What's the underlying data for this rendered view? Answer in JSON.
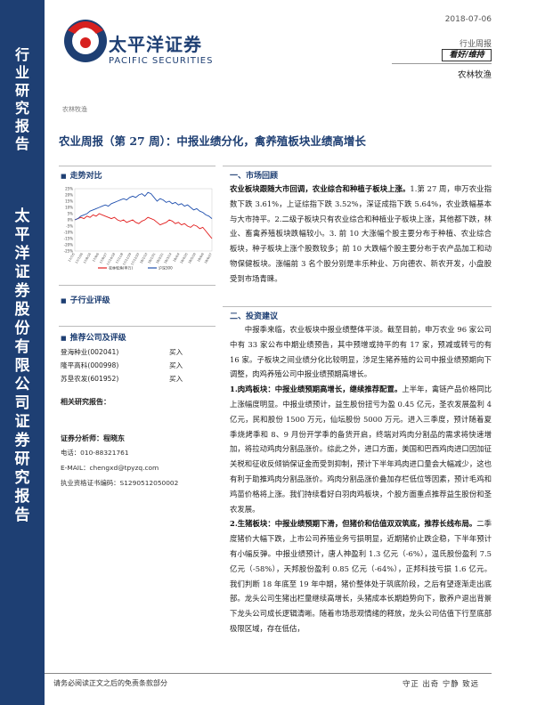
{
  "sidebar": {
    "top_label": "行业研究报告",
    "bottom_label": "太平洋证券股份有限公司证券研究报告"
  },
  "header": {
    "logo_cn": "太平洋证券",
    "logo_en": "PACIFIC SECURITIES",
    "date": "2018-07-06",
    "report_type": "行业周报",
    "rating": "看好/维持",
    "sector": "农林牧渔",
    "sector_small": "农林牧渔"
  },
  "title": "农业周报（第 27 周）：中报业绩分化，禽养殖板块业绩高增长",
  "sections": {
    "trend": "走势对比",
    "sub_rating": "子行业评级",
    "recommend": "推荐公司及评级",
    "related": "相关研究报告：",
    "market_review": "一、市场回顾",
    "investment": "二、投资建议"
  },
  "chart_data": {
    "type": "line",
    "y_ticks": [
      "25%",
      "20%",
      "15%",
      "10%",
      "5%",
      "0%",
      "-5%",
      "-10%",
      "-15%",
      "-20%",
      "-25%"
    ],
    "x_ticks": [
      "17/7/5",
      "17/7/26",
      "17/8/16",
      "17/9/6",
      "17/9/27",
      "17/10/18",
      "17/11/8",
      "17/11/29",
      "17/12/20",
      "18/1/10",
      "18/1/31",
      "18/2/21",
      "18/3/14",
      "18/4/4",
      "18/4/25",
      "18/5/16",
      "18/6/6",
      "18/6/27"
    ],
    "ylim": [
      -25,
      25
    ],
    "series": [
      {
        "name": "农林牧渔(申万)",
        "color": "#e21e1e",
        "values": [
          0,
          1,
          2,
          1,
          3,
          2,
          4,
          3,
          5,
          4,
          3,
          2,
          1,
          2,
          0,
          -1,
          0,
          -2,
          -1,
          0,
          -2,
          -3,
          -1,
          0,
          2,
          1,
          0,
          -2,
          -4,
          -3,
          -2,
          0,
          -1,
          -3,
          -2,
          -4,
          -3,
          -5,
          -6,
          -4,
          -5,
          -7,
          -6,
          -9,
          -12,
          -15
        ]
      },
      {
        "name": "沪深300",
        "color": "#1f4fae",
        "values": [
          0,
          1,
          3,
          4,
          5,
          7,
          8,
          9,
          10,
          11,
          12,
          11,
          13,
          14,
          15,
          16,
          17,
          16,
          18,
          19,
          18,
          20,
          21,
          19,
          22,
          21,
          18,
          15,
          17,
          16,
          14,
          15,
          13,
          14,
          12,
          13,
          11,
          12,
          10,
          8,
          9,
          7,
          6,
          4,
          3,
          1
        ]
      }
    ]
  },
  "recommend_list": [
    {
      "name": "登海种业(002041)",
      "rating": "买入"
    },
    {
      "name": "隆平高科(000998)",
      "rating": "买入"
    },
    {
      "name": "苏垦农发(601952)",
      "rating": "买入"
    }
  ],
  "analyst": {
    "label": "证券分析师：程晓东",
    "phone": "电话：010-88321761",
    "email": "E-MAIL：chengxd@tpyzq.com",
    "license": "执业资格证书编码：S1290512050002"
  },
  "market_review": {
    "lead": "农业板块跟随大市回调，农业综合和种植子板块上涨。",
    "body": "1.第 27 周，申万农业指数下跌 3.61%，上证综指下跌 3.52%，深证成指下跌 5.64%，农业跌幅基本与大市持平。2.二级子板块只有农业综合和种植业子板块上涨，其他都下跌，林业、畜禽养殖板块跌幅较小。3. 前 10 大涨幅个股主要分布于种植、农业综合板块，种子板块上涨个股数较多；前 10 大跌幅个股主要分布于农产品加工和动物保健板块。涨幅前 3 名个股分别是丰乐种业、万向德农、新农开发，小盘股受到市场青睐。"
  },
  "investment": {
    "p1": "中报季来临，农业板块中报业绩整体平淡。截至目前，申万农业 96 家公司中有 33 家公布中期业绩预告，其中预增或持平的有 17 家，预减或转亏的有 16 家。子板块之间业绩分化比较明显，涉足生猪养殖的公司中报业绩预期向下调整，肉鸡养殖公司中报业绩预期高增长。",
    "p2_lead": "1.肉鸡板块：中报业绩预期高增长，继续推荐配置。",
    "p2_body": "上半年，禽链产品价格同比上涨幅度明显。中报业绩预计，益生股份扭亏为盈 0.45 亿元，圣农发展盈利 4 亿元，民和股份 1500 万元，仙坛股份 5000 万元。进入三季度，预计随着夏季烧烤季和 8、9 月份开学季的备货开启，终端对鸡肉分割品的需求将快速增加，将拉动鸡肉分割品涨价。综此之外，进口方面，美国和巴西鸡肉进口因加征关税和征收反倾销保证金而受到抑制，预计下半年鸡肉进口量会大幅减少，这也有利于助推鸡肉分割品涨价。鸡肉分割品涨价叠加存栏低位等因素，预计毛鸡和鸡苗价格将上涨。我们持续看好白羽肉鸡板块，个股方面重点推荐益生股份和圣农发展。",
    "p3_lead": "2.生猪板块：中报业绩预期下滑，但猪价和估值双双筑底，推荐长线布局。",
    "p3_body": "二季度猪价大幅下跌，上市公司养殖业务亏损明显，近期猪价止跌企稳，下半年预计有小幅反弹。中报业绩预计，唐人神盈利 1.3 亿元（-6%），温氏股份盈利 7.5 亿元（-58%），天邦股份盈利 0.85 亿元（-64%），正邦科技亏损 1.6 亿元。我们判断 18 年底至 19 年中期，猪价整体处于筑底阶段，之后有望逐渐走出底部。龙头公司生猪出栏量继续高增长，头猪成本长期趋势向下，散养户退出背景下龙头公司成长逻辑清晰。随着市场悲观情绪的释放，龙头公司估值下行至底部极限区域，存在低估，"
  },
  "footer": {
    "left": "请务必阅读正文之后的免责条款部分",
    "right": "守正 出奇 宁静 致远"
  }
}
